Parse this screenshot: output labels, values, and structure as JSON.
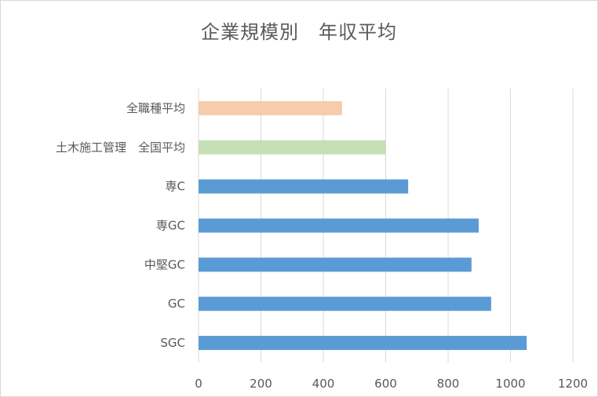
{
  "chart_data": {
    "type": "bar",
    "orientation": "horizontal",
    "title": "企業規模別　年収平均",
    "categories": [
      "全職種平均",
      "土木施工管理　全国平均",
      "専C",
      "専GC",
      "中堅GC",
      "GC",
      "SGC"
    ],
    "values": [
      460,
      600,
      672,
      898,
      875,
      938,
      1052
    ],
    "bar_colors": [
      "#f8cbad",
      "#c5e0b4",
      "#5b9bd5",
      "#5b9bd5",
      "#5b9bd5",
      "#5b9bd5",
      "#5b9bd5"
    ],
    "xlim": [
      0,
      1200
    ],
    "xticks": [
      0,
      200,
      400,
      600,
      800,
      1000,
      1200
    ],
    "grid": "vertical",
    "legend": "none"
  }
}
